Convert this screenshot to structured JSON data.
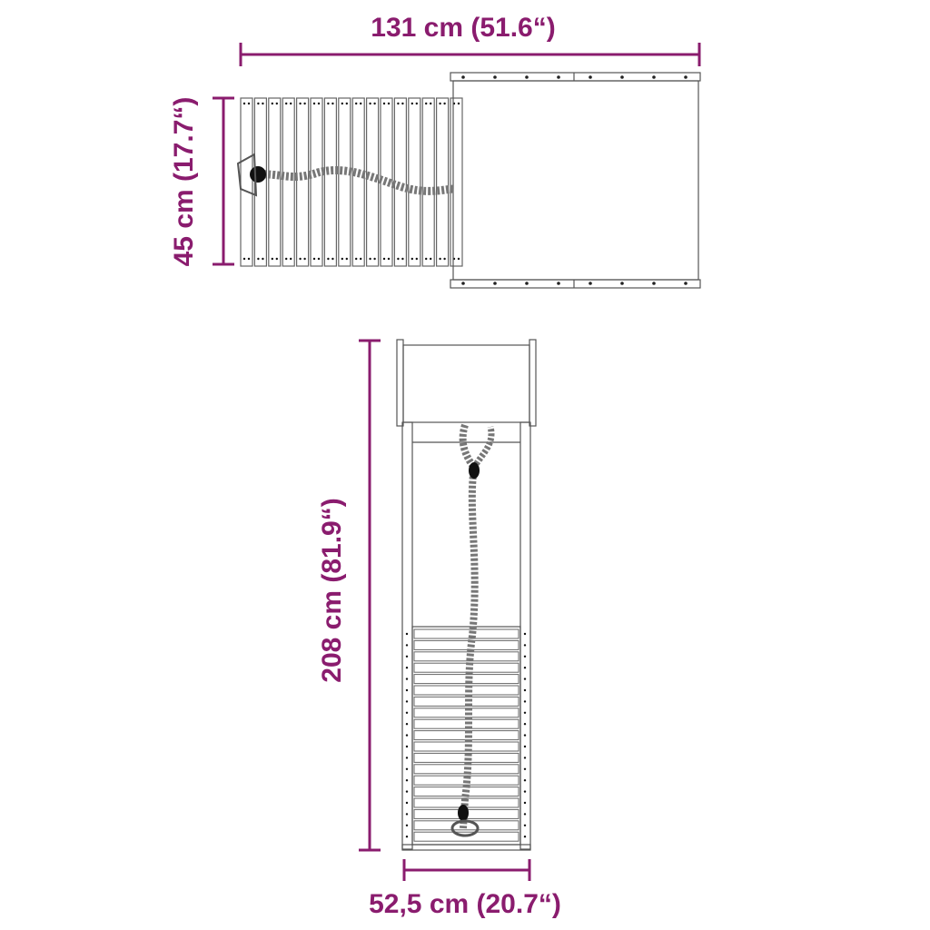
{
  "colors": {
    "dimension": "#8a1c6e",
    "outline": "#555555",
    "rope": "#8a8a8a"
  },
  "dimensions": {
    "top_width": "131 cm (51.6“)",
    "top_depth": "45 cm (17.7“)",
    "height": "208 cm (81.9“)",
    "front_width": "52,5 cm (20.7“)"
  }
}
